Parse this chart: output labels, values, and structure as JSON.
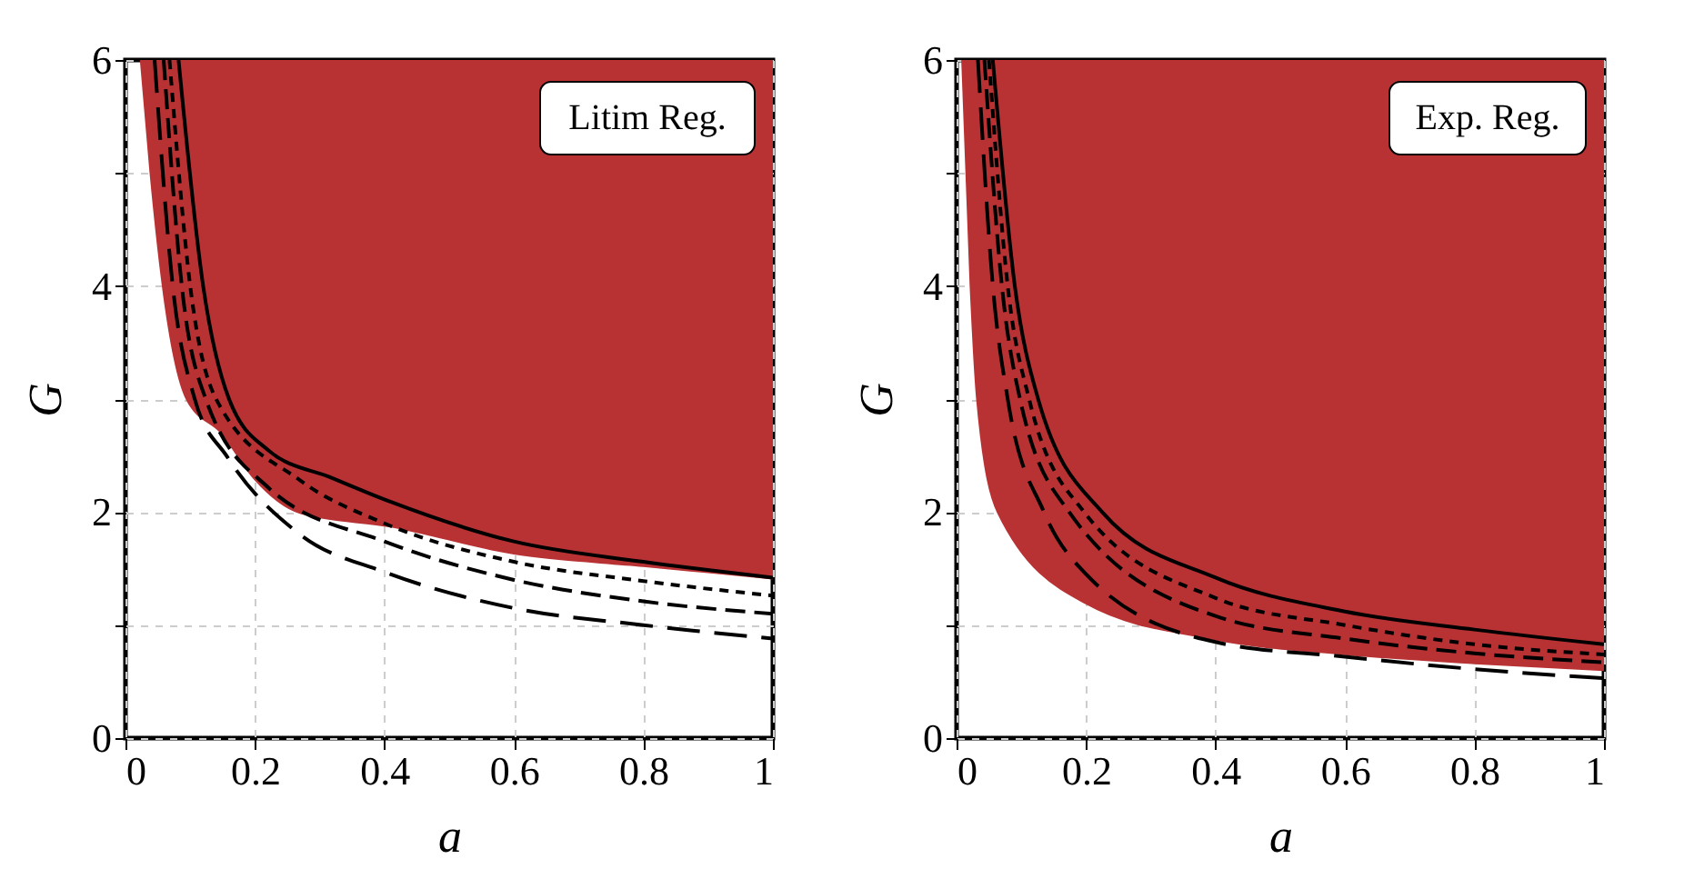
{
  "chart_data": [
    {
      "type": "line",
      "xlabel": "a",
      "ylabel": "G",
      "xlim": [
        0,
        1
      ],
      "ylim": [
        0,
        6
      ],
      "xticks": [
        0,
        0.2,
        0.4,
        0.6,
        0.8,
        1
      ],
      "yticks": [
        0,
        {
          "value": 1,
          "label": null
        },
        2,
        {
          "value": 3,
          "label": null
        },
        4,
        {
          "value": 5,
          "label": null
        },
        6
      ],
      "grid": true,
      "annotations": [
        "Litim Reg."
      ],
      "series": [
        {
          "color": "#b83234",
          "line_style": "solid",
          "x": [
            0.025,
            0.04,
            0.059,
            0.096,
            0.15,
            0.2,
            0.27,
            0.41,
            0.6,
            0.8,
            1
          ],
          "values": [
            6,
            5,
            4,
            3,
            2.7,
            2.3,
            2.0,
            1.88,
            1.64,
            1.53,
            1.42
          ],
          "lower": [
            6,
            5,
            4,
            3,
            2.7,
            2.3,
            2.0,
            1.88,
            1.64,
            1.53,
            1.42
          ],
          "upper": [
            6,
            6,
            6,
            6,
            6,
            6,
            6,
            6,
            6,
            6,
            6
          ]
        },
        {
          "color": "#000000",
          "line_style": "solid",
          "x": [
            0.082,
            0.12,
            0.16,
            0.22,
            0.32,
            0.41,
            0.6,
            0.8,
            1
          ],
          "values": [
            6,
            4,
            3,
            2.55,
            2.3,
            2.09,
            1.74,
            1.56,
            1.42
          ]
        },
        {
          "color": "#000000",
          "line_style": "dashed",
          "x": [
            0.068,
            0.1,
            0.14,
            0.27,
            0.4,
            0.6,
            0.8,
            1
          ],
          "values": [
            6,
            4,
            3,
            2.28,
            1.9,
            1.56,
            1.39,
            1.26
          ]
        },
        {
          "color": "#000000",
          "line_style": "dashed",
          "x": [
            0.059,
            0.087,
            0.124,
            0.22,
            0.4,
            0.6,
            0.8,
            1
          ],
          "values": [
            6,
            4,
            3,
            2.22,
            1.74,
            1.4,
            1.21,
            1.1
          ]
        },
        {
          "color": "#000000",
          "line_style": "dashed",
          "x": [
            0.045,
            0.073,
            0.107,
            0.157,
            0.27,
            0.4,
            0.6,
            0.8,
            1
          ],
          "values": [
            6,
            4,
            3,
            2.49,
            1.8,
            1.47,
            1.15,
            1.0,
            0.88
          ]
        }
      ]
    },
    {
      "type": "line",
      "xlabel": "a",
      "ylabel": "G",
      "xlim": [
        0,
        1
      ],
      "ylim": [
        0,
        6
      ],
      "xticks": [
        0,
        0.2,
        0.4,
        0.6,
        0.8,
        1
      ],
      "yticks": [
        0,
        {
          "value": 1,
          "label": null
        },
        2,
        {
          "value": 3,
          "label": null
        },
        4,
        {
          "value": 5,
          "label": null
        },
        6
      ],
      "grid": true,
      "annotations": [
        "Exp. Reg."
      ],
      "series": [
        {
          "color": "#b83234",
          "line_style": "solid",
          "x": [
            0.01,
            0.023,
            0.033,
            0.065,
            0.2,
            0.4,
            0.6,
            0.8,
            1
          ],
          "values": [
            6,
            4,
            3,
            2,
            1.2,
            0.88,
            0.75,
            0.67,
            0.61
          ],
          "lower": [
            6,
            4,
            3,
            2,
            1.2,
            0.88,
            0.75,
            0.67,
            0.61
          ],
          "upper": [
            6,
            6,
            6,
            6,
            6,
            6,
            6,
            6,
            6
          ]
        },
        {
          "color": "#000000",
          "line_style": "solid",
          "x": [
            0.056,
            0.09,
            0.126,
            0.225,
            0.4,
            0.6,
            0.8,
            1
          ],
          "values": [
            6,
            4,
            3,
            2,
            1.42,
            1.12,
            0.96,
            0.83
          ]
        },
        {
          "color": "#000000",
          "line_style": "dashed",
          "x": [
            0.05,
            0.079,
            0.112,
            0.197,
            0.4,
            0.6,
            0.8,
            1
          ],
          "values": [
            6,
            4,
            3,
            2,
            1.24,
            1.0,
            0.83,
            0.74
          ]
        },
        {
          "color": "#000000",
          "line_style": "dashed",
          "x": [
            0.043,
            0.07,
            0.098,
            0.174,
            0.4,
            0.6,
            0.8,
            1
          ],
          "values": [
            6,
            4,
            3,
            2,
            1.08,
            0.88,
            0.75,
            0.67
          ]
        },
        {
          "color": "#000000",
          "line_style": "dashed",
          "x": [
            0.033,
            0.056,
            0.079,
            0.135,
            0.2,
            0.4,
            0.6,
            0.8,
            1
          ],
          "values": [
            6,
            4,
            3,
            2,
            1.45,
            0.85,
            0.72,
            0.61,
            0.53
          ]
        }
      ]
    }
  ]
}
